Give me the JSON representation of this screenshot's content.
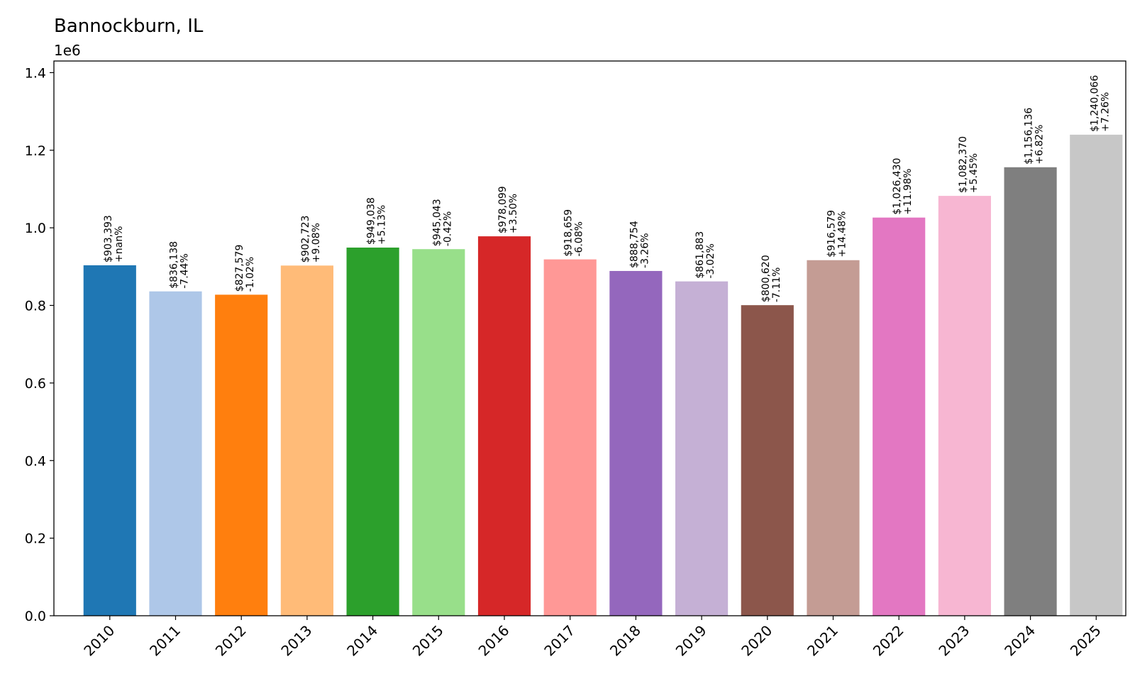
{
  "chart_data": {
    "type": "bar",
    "title": "Bannockburn, IL",
    "y_offset_label": "1e6",
    "xlabel": "",
    "ylabel": "",
    "ylim": [
      0,
      1430000
    ],
    "yticks": [
      0,
      200000,
      400000,
      600000,
      800000,
      1000000,
      1200000,
      1400000
    ],
    "ytick_labels": [
      "0.0",
      "0.2",
      "0.4",
      "0.6",
      "0.8",
      "1.0",
      "1.2",
      "1.4"
    ],
    "grid": false,
    "categories": [
      "2010",
      "2011",
      "2012",
      "2013",
      "2014",
      "2015",
      "2016",
      "2017",
      "2018",
      "2019",
      "2020",
      "2021",
      "2022",
      "2023",
      "2024",
      "2025"
    ],
    "values": [
      903393,
      836138,
      827579,
      902723,
      949038,
      945043,
      978099,
      918659,
      888754,
      861883,
      800620,
      916579,
      1026430,
      1082370,
      1156136,
      1240066
    ],
    "value_labels": [
      "$903,393",
      "$836,138",
      "$827,579",
      "$902,723",
      "$949,038",
      "$945,043",
      "$978,099",
      "$918,659",
      "$888,754",
      "$861,883",
      "$800,620",
      "$916,579",
      "$1,026,430",
      "$1,082,370",
      "$1,156,136",
      "$1,240,066"
    ],
    "change_labels": [
      "+nan%",
      "-7.44%",
      "-1.02%",
      "+9.08%",
      "+5.13%",
      "-0.42%",
      "+3.50%",
      "-6.08%",
      "-3.26%",
      "-3.02%",
      "-7.11%",
      "+14.48%",
      "+11.98%",
      "+5.45%",
      "+6.82%",
      "+7.26%"
    ],
    "colors": [
      "#1f77b4",
      "#aec7e8",
      "#ff7f0e",
      "#ffbb78",
      "#2ca02c",
      "#98df8a",
      "#d62728",
      "#ff9896",
      "#9467bd",
      "#c5b0d5",
      "#8c564b",
      "#c49c94",
      "#e377c2",
      "#f7b6d2",
      "#7f7f7f",
      "#c7c7c7"
    ]
  }
}
